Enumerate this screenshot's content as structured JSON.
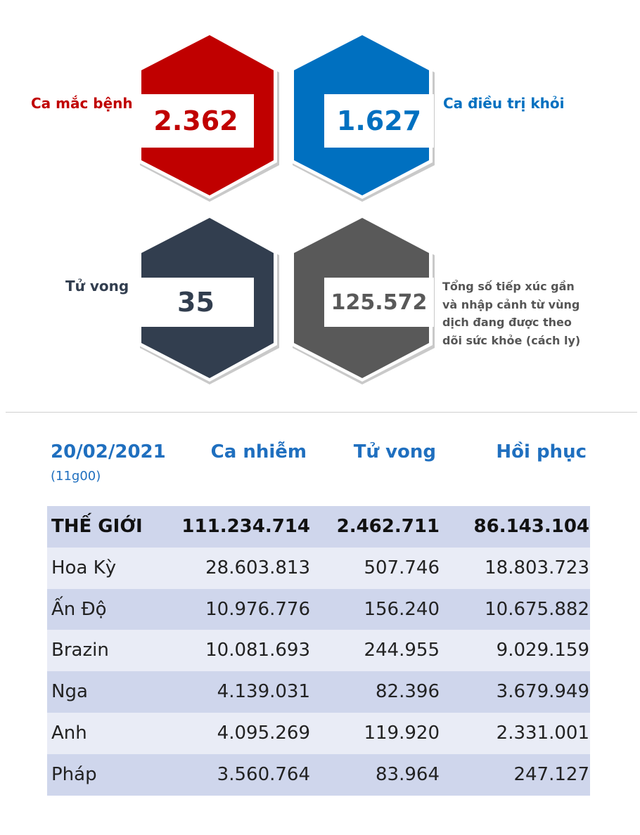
{
  "summary": {
    "cases": {
      "label": "Ca mắc bệnh",
      "value": "2.362",
      "color": "#c00000"
    },
    "recovered": {
      "label": "Ca điều trị khỏi",
      "value": "1.627",
      "color": "#0070c0"
    },
    "deaths": {
      "label": "Tử vong",
      "value": "35",
      "color": "#323e4f"
    },
    "monitored": {
      "label": "Tổng số tiếp xúc gần và nhập cảnh từ vùng dịch đang được theo dõi sức khỏe (cách ly)",
      "value": "125.572",
      "color": "#595959"
    }
  },
  "table": {
    "date": "20/02/2021",
    "time": "(11g00)",
    "headers": [
      "Ca nhiễm",
      "Tử vong",
      "Hồi phục"
    ],
    "rows": [
      {
        "name": "THẾ GIỚI",
        "cases": "111.234.714",
        "deaths": "2.462.711",
        "recovered": "86.143.104"
      },
      {
        "name": "Hoa Kỳ",
        "cases": "28.603.813",
        "deaths": "507.746",
        "recovered": "18.803.723"
      },
      {
        "name": "Ấn Độ",
        "cases": "10.976.776",
        "deaths": "156.240",
        "recovered": "10.675.882"
      },
      {
        "name": "Brazin",
        "cases": "10.081.693",
        "deaths": "244.955",
        "recovered": "9.029.159"
      },
      {
        "name": "Nga",
        "cases": "4.139.031",
        "deaths": "82.396",
        "recovered": "3.679.949"
      },
      {
        "name": "Anh",
        "cases": "4.095.269",
        "deaths": "119.920",
        "recovered": "2.331.001"
      },
      {
        "name": "Pháp",
        "cases": "3.560.764",
        "deaths": "83.964",
        "recovered": "247.127"
      }
    ]
  }
}
